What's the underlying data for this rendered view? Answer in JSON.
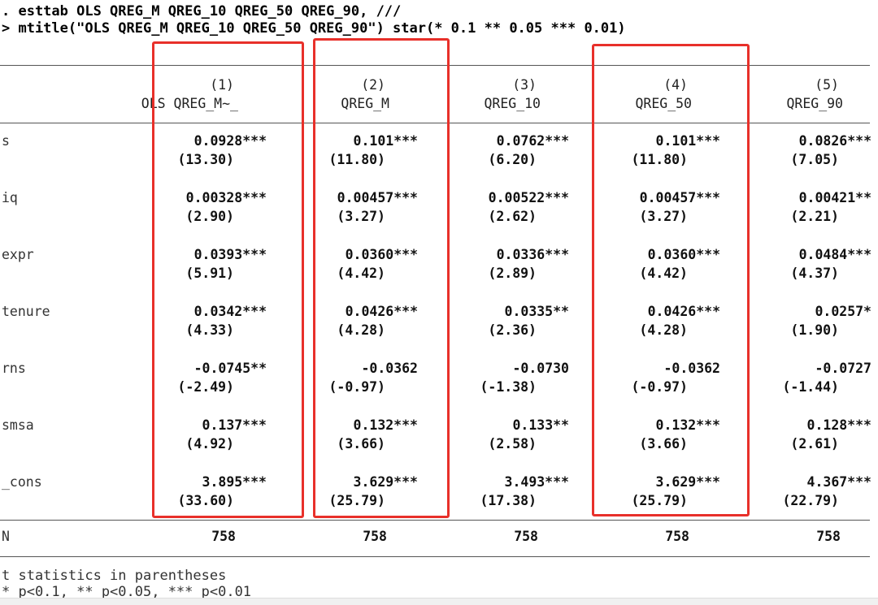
{
  "command": {
    "line1": ". esttab OLS QREG_M QREG_10 QREG_50 QREG_90, ///",
    "line2": "> mtitle(\"OLS QREG_M QREG_10 QREG_50 QREG_90\") star(* 0.1 ** 0.05 *** 0.01)"
  },
  "table": {
    "columns": [
      {
        "number": "(1)",
        "title": "OLS QREG_M~_"
      },
      {
        "number": "(2)",
        "title": "QREG_M"
      },
      {
        "number": "(3)",
        "title": "QREG_10"
      },
      {
        "number": "(4)",
        "title": "QREG_50"
      },
      {
        "number": "(5)",
        "title": "QREG_90"
      }
    ],
    "rows": [
      {
        "label": "s",
        "coef": [
          "0.0928***",
          "0.101***",
          "0.0762***",
          "0.101***",
          "0.0826***"
        ],
        "tstat": [
          "(13.30)",
          "(11.80)",
          "(6.20)",
          "(11.80)",
          "(7.05)"
        ]
      },
      {
        "label": "iq",
        "coef": [
          "0.00328***",
          "0.00457***",
          "0.00522***",
          "0.00457***",
          "0.00421**"
        ],
        "tstat": [
          "(2.90)",
          "(3.27)",
          "(2.62)",
          "(3.27)",
          "(2.21)"
        ]
      },
      {
        "label": "expr",
        "coef": [
          "0.0393***",
          "0.0360***",
          "0.0336***",
          "0.0360***",
          "0.0484***"
        ],
        "tstat": [
          "(5.91)",
          "(4.42)",
          "(2.89)",
          "(4.42)",
          "(4.37)"
        ]
      },
      {
        "label": "tenure",
        "coef": [
          "0.0342***",
          "0.0426***",
          "0.0335**",
          "0.0426***",
          "0.0257*"
        ],
        "tstat": [
          "(4.33)",
          "(4.28)",
          "(2.36)",
          "(4.28)",
          "(1.90)"
        ]
      },
      {
        "label": "rns",
        "coef": [
          "-0.0745**",
          "-0.0362",
          "-0.0730",
          "-0.0362",
          "-0.0727"
        ],
        "tstat": [
          "(-2.49)",
          "(-0.97)",
          "(-1.38)",
          "(-0.97)",
          "(-1.44)"
        ]
      },
      {
        "label": "smsa",
        "coef": [
          "0.137***",
          "0.132***",
          "0.133**",
          "0.132***",
          "0.128***"
        ],
        "tstat": [
          "(4.92)",
          "(3.66)",
          "(2.58)",
          "(3.66)",
          "(2.61)"
        ]
      },
      {
        "label": "_cons",
        "coef": [
          "3.895***",
          "3.629***",
          "3.493***",
          "3.629***",
          "4.367***"
        ],
        "tstat": [
          "(33.60)",
          "(25.79)",
          "(17.38)",
          "(25.79)",
          "(22.79)"
        ]
      }
    ],
    "n_row": {
      "label": "N",
      "values": [
        "758",
        "758",
        "758",
        "758",
        "758"
      ]
    }
  },
  "notes": {
    "line1": "t statistics in parentheses",
    "line2": "* p<0.1, ** p<0.05, *** p<0.01"
  },
  "highlight_color": "#e8302a"
}
